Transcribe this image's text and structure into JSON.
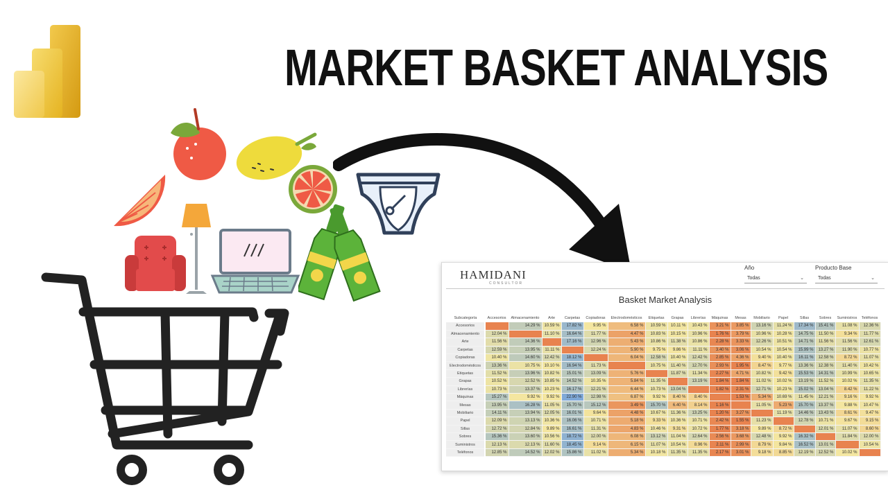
{
  "title": "MARKET BASKET ANALYSIS",
  "icons": {
    "logo": "power-bi-logo",
    "items": [
      "apple-icon",
      "lemon-icon",
      "grapefruit-slice-icon",
      "orange-slice-icon",
      "diaper-icon",
      "floor-lamp-icon",
      "armchair-icon",
      "laptop-icon",
      "beer-bottles-icon",
      "shopping-cart-icon",
      "curved-arrow-icon"
    ]
  },
  "dashboard": {
    "brand": "HAMIDANI",
    "brand_sub": "CONSULTOR",
    "slicers": [
      {
        "label": "Año",
        "value": "Todas"
      },
      {
        "label": "Producto Base",
        "value": "Todas"
      }
    ],
    "title": "Basket Market Analysis",
    "corner_header": "Subcategoría",
    "columns": [
      "Accesorios",
      "Almacenamiento",
      "Arte",
      "Carpetas",
      "Copiadoras",
      "Electrodomésticos",
      "Etiquetas",
      "Grapas",
      "Librerías",
      "Máquinas",
      "Mesas",
      "Mobiliario",
      "Papel",
      "Sillas",
      "Sobres",
      "Suministros",
      "Teléfonos"
    ],
    "rows": [
      {
        "name": "Accesorios",
        "cells": [
          "",
          "14.29 %",
          "10.59 %",
          "17.82 %",
          "9.95 %",
          "6.58 %",
          "10.59 %",
          "10.11 %",
          "10.43 %",
          "3.21 %",
          "3.85 %",
          "13.16 %",
          "11.24 %",
          "17.34 %",
          "15.41 %",
          "11.08 %",
          "12.36 %"
        ]
      },
      {
        "name": "Almacenamiento",
        "cells": [
          "12.04 %",
          "",
          "11.10 %",
          "16.64 %",
          "11.77 %",
          "4.47 %",
          "10.83 %",
          "10.15 %",
          "10.96 %",
          "1.76 %",
          "3.79 %",
          "10.96 %",
          "10.28 %",
          "14.75 %",
          "11.50 %",
          "9.34 %",
          "11.77 %"
        ]
      },
      {
        "name": "Arte",
        "cells": [
          "11.56 %",
          "14.36 %",
          "",
          "17.16 %",
          "12.96 %",
          "5.43 %",
          "10.86 %",
          "11.38 %",
          "10.86 %",
          "2.28 %",
          "3.33 %",
          "12.26 %",
          "10.51 %",
          "14.71 %",
          "11.56 %",
          "11.56 %",
          "12.61 %"
        ]
      },
      {
        "name": "Carpetas",
        "cells": [
          "12.59 %",
          "13.95 %",
          "11.11 %",
          "",
          "12.24 %",
          "5.90 %",
          "9.75 %",
          "9.86 %",
          "11.11 %",
          "3.40 %",
          "3.06 %",
          "10.54 %",
          "10.54 %",
          "15.99 %",
          "13.27 %",
          "11.90 %",
          "10.77 %"
        ]
      },
      {
        "name": "Copiadoras",
        "cells": [
          "10.40 %",
          "14.60 %",
          "12.42 %",
          "18.12 %",
          "",
          "6.04 %",
          "12.58 %",
          "10.40 %",
          "12.42 %",
          "2.85 %",
          "4.36 %",
          "9.40 %",
          "10.40 %",
          "16.11 %",
          "12.58 %",
          "8.72 %",
          "11.07 %"
        ]
      },
      {
        "name": "Electrodomésticos",
        "cells": [
          "13.36 %",
          "10.75 %",
          "10.10 %",
          "16.94 %",
          "11.73 %",
          "",
          "10.75 %",
          "11.40 %",
          "12.70 %",
          "2.93 %",
          "1.95 %",
          "8.47 %",
          "9.77 %",
          "13.36 %",
          "12.38 %",
          "11.40 %",
          "10.42 %"
        ]
      },
      {
        "name": "Etiquetas",
        "cells": [
          "11.52 %",
          "13.96 %",
          "10.82 %",
          "15.01 %",
          "13.09 %",
          "5.76 %",
          "",
          "11.87 %",
          "11.34 %",
          "2.27 %",
          "4.71 %",
          "10.82 %",
          "9.42 %",
          "15.53 %",
          "14.31 %",
          "10.99 %",
          "10.65 %"
        ]
      },
      {
        "name": "Grapas",
        "cells": [
          "10.52 %",
          "12.52 %",
          "10.85 %",
          "14.52 %",
          "10.35 %",
          "5.84 %",
          "11.35 %",
          "",
          "13.19 %",
          "1.84 %",
          "1.84 %",
          "11.02 %",
          "10.02 %",
          "13.19 %",
          "11.52 %",
          "10.02 %",
          "11.35 %"
        ]
      },
      {
        "name": "Librerías",
        "cells": [
          "10.73 %",
          "13.37 %",
          "10.23 %",
          "16.17 %",
          "12.21 %",
          "6.44 %",
          "10.73 %",
          "13.04 %",
          "",
          "1.82 %",
          "2.31 %",
          "12.71 %",
          "10.23 %",
          "15.02 %",
          "13.04 %",
          "8.42 %",
          "11.22 %"
        ]
      },
      {
        "name": "Máquinas",
        "cells": [
          "15.27 %",
          "9.92 %",
          "9.92 %",
          "22.90 %",
          "12.98 %",
          "6.87 %",
          "9.92 %",
          "8.40 %",
          "8.40 %",
          "",
          "1.53 %",
          "5.34 %",
          "10.69 %",
          "11.45 %",
          "12.21 %",
          "9.16 %",
          "9.92 %"
        ]
      },
      {
        "name": "Mesas",
        "cells": [
          "13.95 %",
          "16.28 %",
          "11.05 %",
          "15.70 %",
          "15.12 %",
          "3.49 %",
          "15.70 %",
          "6.40 %",
          "8.14 %",
          "1.16 %",
          "",
          "11.05 %",
          "5.23 %",
          "15.70 %",
          "13.37 %",
          "9.88 %",
          "10.47 %"
        ]
      },
      {
        "name": "Mobiliario",
        "cells": [
          "14.11 %",
          "13.94 %",
          "12.05 %",
          "16.01 %",
          "9.64 %",
          "4.48 %",
          "10.67 %",
          "11.36 %",
          "13.25 %",
          "1.20 %",
          "3.27 %",
          "",
          "11.19 %",
          "14.46 %",
          "13.43 %",
          "8.61 %",
          "9.47 %"
        ]
      },
      {
        "name": "Papel",
        "cells": [
          "12.09 %",
          "13.13 %",
          "10.36 %",
          "16.06 %",
          "10.71 %",
          "5.18 %",
          "9.33 %",
          "10.36 %",
          "10.71 %",
          "2.42 %",
          "1.55 %",
          "11.23 %",
          "",
          "12.78 %",
          "10.71 %",
          "9.67 %",
          "9.15 %"
        ]
      },
      {
        "name": "Sillas",
        "cells": [
          "12.72 %",
          "12.84 %",
          "9.89 %",
          "16.61 %",
          "11.31 %",
          "4.83 %",
          "10.46 %",
          "9.31 %",
          "10.72 %",
          "1.77 %",
          "3.18 %",
          "9.89 %",
          "8.72 %",
          "",
          "12.01 %",
          "11.07 %",
          "8.60 %"
        ]
      },
      {
        "name": "Sobres",
        "cells": [
          "15.36 %",
          "13.60 %",
          "10.56 %",
          "18.72 %",
          "12.00 %",
          "6.08 %",
          "13.12 %",
          "11.04 %",
          "12.64 %",
          "2.56 %",
          "3.68 %",
          "12.48 %",
          "9.92 %",
          "16.32 %",
          "",
          "11.84 %",
          "12.00 %"
        ]
      },
      {
        "name": "Suministros",
        "cells": [
          "12.13 %",
          "12.13 %",
          "11.60 %",
          "18.45 %",
          "9.14 %",
          "6.15 %",
          "11.07 %",
          "10.54 %",
          "8.96 %",
          "2.11 %",
          "2.99 %",
          "8.79 %",
          "9.84 %",
          "16.52 %",
          "13.01 %",
          "",
          "10.54 %"
        ]
      },
      {
        "name": "Teléfonos",
        "cells": [
          "12.85 %",
          "14.52 %",
          "12.02 %",
          "15.86 %",
          "11.02 %",
          "5.34 %",
          "10.18 %",
          "11.35 %",
          "11.35 %",
          "2.17 %",
          "3.01 %",
          "9.18 %",
          "8.85 %",
          "12.19 %",
          "12.52 %",
          "10.02 %",
          ""
        ]
      }
    ]
  },
  "colors": {
    "diagonal": "#e8834f",
    "low": "#e8834f",
    "mid": "#f4e7a1",
    "high": "#7fa9d8",
    "title_text": "#111111"
  }
}
